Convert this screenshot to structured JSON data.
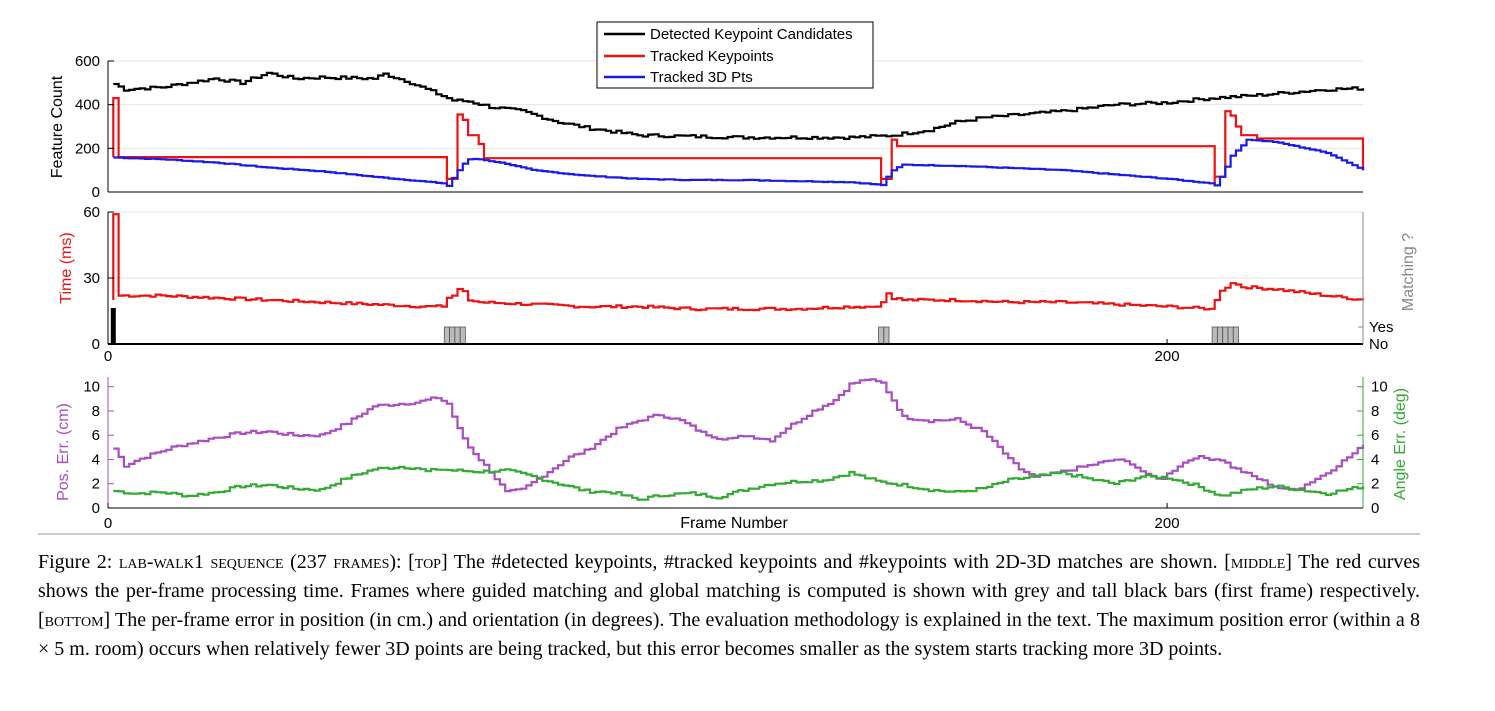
{
  "colors": {
    "detected": "#000000",
    "tracked_kp": "#ee1111",
    "tracked_3d": "#1a1ae6",
    "time": "#ee1111",
    "matching_bar": "#999999",
    "first_frame_bar": "#000000",
    "pos_err": "#a84ec2",
    "ang_err": "#33aa33",
    "right_axis_grey": "#888888"
  },
  "chart_data": [
    {
      "type": "line",
      "panel": "top",
      "ylabel": "Feature Count",
      "ylim": [
        0,
        600
      ],
      "yticks": [
        "0",
        "200",
        "400",
        "600"
      ],
      "xlim": [
        0,
        237
      ],
      "grid": "horizontal",
      "legend_position": "top-center",
      "series": [
        {
          "name": "Detected Keypoint Candidates",
          "x": [
            1,
            3,
            10,
            20,
            25,
            30,
            35,
            40,
            50,
            52,
            56,
            62,
            65,
            68,
            72,
            78,
            85,
            90,
            100,
            110,
            120,
            130,
            140,
            145,
            148,
            155,
            160,
            165,
            170,
            180,
            190,
            195,
            200,
            208,
            215,
            220,
            230,
            237
          ],
          "y": [
            495,
            470,
            480,
            520,
            500,
            545,
            520,
            525,
            520,
            540,
            510,
            450,
            420,
            415,
            390,
            370,
            320,
            295,
            260,
            255,
            250,
            250,
            250,
            255,
            260,
            285,
            320,
            340,
            350,
            370,
            400,
            405,
            410,
            430,
            440,
            450,
            470,
            475
          ]
        },
        {
          "name": "Tracked Keypoints",
          "x": [
            1,
            1,
            2,
            64,
            64,
            66,
            67,
            68,
            70,
            71,
            146,
            146,
            148,
            149,
            209,
            209,
            211,
            212,
            213,
            214,
            217,
            237
          ],
          "y": [
            160,
            430,
            160,
            30,
            60,
            355,
            330,
            260,
            220,
            155,
            30,
            60,
            240,
            210,
            30,
            70,
            370,
            350,
            300,
            260,
            245,
            100
          ]
        },
        {
          "name": "Tracked 3D Pts",
          "x": [
            1,
            10,
            20,
            30,
            40,
            50,
            63,
            64,
            66,
            67,
            68,
            70,
            75,
            80,
            90,
            100,
            110,
            120,
            130,
            140,
            146,
            147,
            148,
            150,
            160,
            170,
            180,
            190,
            200,
            208,
            209,
            210,
            212,
            215,
            220,
            230,
            237
          ],
          "y": [
            158,
            150,
            135,
            112,
            95,
            70,
            40,
            28,
            100,
            130,
            150,
            150,
            130,
            100,
            75,
            60,
            55,
            55,
            50,
            45,
            32,
            70,
            100,
            125,
            120,
            110,
            100,
            80,
            60,
            40,
            30,
            70,
            165,
            240,
            230,
            180,
            100
          ]
        }
      ]
    },
    {
      "type": "line",
      "panel": "middle",
      "ylabel": "Time (ms)",
      "ylabel_right": "Matching ?",
      "ylim": [
        0,
        60
      ],
      "yticks": [
        "0",
        "30",
        "60"
      ],
      "right_ticks": [
        "Yes",
        "No"
      ],
      "xlim": [
        0,
        237
      ],
      "xticks": [
        "0",
        "200"
      ],
      "series": [
        {
          "name": "Time",
          "x": [
            1,
            1,
            2,
            10,
            20,
            30,
            40,
            50,
            60,
            63,
            64,
            65,
            66,
            67,
            68,
            70,
            80,
            90,
            100,
            110,
            120,
            130,
            140,
            145,
            146,
            147,
            148,
            150,
            160,
            170,
            180,
            190,
            200,
            208,
            209,
            210,
            212,
            214,
            220,
            230,
            237
          ],
          "y": [
            20,
            59,
            22,
            22,
            21,
            20,
            19,
            18,
            17,
            17,
            21,
            22,
            25,
            24,
            20,
            19,
            18,
            17,
            17,
            16,
            16,
            16,
            17,
            17,
            19,
            23,
            21,
            20,
            20,
            19,
            19,
            18,
            17,
            16,
            20,
            24,
            28,
            26,
            25,
            22,
            20
          ]
        }
      ],
      "matching_bars": {
        "first_frame": [
          1
        ],
        "guided": [
          64,
          65,
          66,
          67,
          146,
          147,
          209,
          210,
          211,
          212,
          213
        ]
      }
    },
    {
      "type": "line",
      "panel": "bottom",
      "xlabel": "Frame Number",
      "ylabel": "Pos. Err. (cm)",
      "ylabel_right": "Angle Err. (deg)",
      "ylim": [
        0,
        10.8
      ],
      "yticks": [
        "0",
        "2",
        "4",
        "6",
        "8",
        "10"
      ],
      "xlim": [
        0,
        237
      ],
      "xticks": [
        "0",
        "200"
      ],
      "series": [
        {
          "name": "Pos. Err.",
          "x": [
            1,
            3,
            5,
            8,
            12,
            20,
            25,
            30,
            35,
            40,
            45,
            50,
            55,
            58,
            62,
            64,
            66,
            68,
            72,
            75,
            78,
            81,
            84,
            87,
            90,
            93,
            96,
            100,
            104,
            108,
            112,
            115,
            118,
            120,
            125,
            128,
            133,
            137,
            140,
            143,
            146,
            150,
            155,
            160,
            165,
            168,
            170,
            172,
            175,
            178,
            180,
            185,
            190,
            193,
            196,
            199,
            200,
            202,
            205,
            210,
            212,
            215,
            218,
            220,
            222,
            225,
            230,
            235,
            237
          ],
          "y": [
            4.9,
            3.5,
            3.9,
            4.4,
            5.0,
            5.8,
            6.2,
            6.3,
            6.0,
            6.0,
            7.0,
            8.4,
            8.6,
            8.7,
            9.1,
            8.6,
            6.5,
            5.0,
            3.0,
            1.3,
            1.5,
            2.4,
            3.3,
            4.2,
            4.7,
            5.6,
            6.5,
            7.2,
            7.7,
            7.2,
            6.2,
            5.8,
            5.7,
            6.0,
            5.6,
            6.6,
            8.0,
            8.9,
            10.2,
            10.6,
            10.3,
            7.5,
            7.2,
            7.3,
            6.3,
            5.0,
            4.0,
            3.2,
            2.5,
            2.8,
            3.0,
            3.5,
            4.0,
            3.7,
            2.7,
            2.4,
            2.8,
            3.5,
            4.2,
            4.0,
            3.4,
            2.8,
            2.2,
            1.8,
            1.5,
            1.7,
            2.9,
            4.5,
            5.2
          ]
        },
        {
          "name": "Angle Err.",
          "x": [
            1,
            5,
            10,
            15,
            20,
            25,
            30,
            35,
            40,
            45,
            50,
            55,
            58,
            60,
            62,
            65,
            70,
            75,
            80,
            85,
            90,
            95,
            100,
            105,
            110,
            115,
            120,
            125,
            130,
            135,
            140,
            145,
            150,
            155,
            160,
            165,
            170,
            175,
            180,
            185,
            190,
            195,
            200,
            205,
            210,
            215,
            220,
            225,
            230,
            237
          ],
          "y": [
            1.4,
            1.2,
            1.3,
            1.0,
            1.3,
            1.8,
            1.9,
            1.6,
            1.5,
            2.5,
            3.2,
            3.4,
            3.3,
            3.0,
            3.2,
            3.1,
            3.0,
            3.1,
            2.6,
            2.0,
            1.4,
            1.3,
            0.7,
            1.1,
            1.2,
            0.9,
            1.5,
            2.0,
            2.2,
            2.3,
            2.9,
            2.2,
            1.9,
            1.5,
            1.3,
            1.6,
            2.3,
            2.6,
            2.9,
            2.4,
            2.0,
            2.6,
            2.5,
            1.9,
            1.0,
            1.5,
            1.8,
            1.5,
            1.2,
            1.8
          ]
        }
      ]
    }
  ],
  "caption": {
    "label": "Figure 2:",
    "seq": "lab-walk1 sequence",
    "frames": "(237",
    "frames_word": "frames",
    "frames_close": "):",
    "top_tag": "[top]",
    "top_text": "The #detected keypoints, #tracked keypoints and #keypoints with 2D-3D matches are shown.",
    "middle_tag": "[middle]",
    "middle_text": "The red curves shows the per-frame processing time. Frames where guided matching and global matching is computed is shown with grey and tall black bars (first frame) respectively.",
    "bottom_tag": "[bottom]",
    "bottom_text": "The per-frame error in position (in cm.) and orientation (in degrees). The evaluation methodology is explained in the text. The maximum position error (within a 8 × 5 m. room) occurs when relatively fewer 3D points are being tracked, but this error becomes smaller as the system starts tracking more 3D points."
  }
}
